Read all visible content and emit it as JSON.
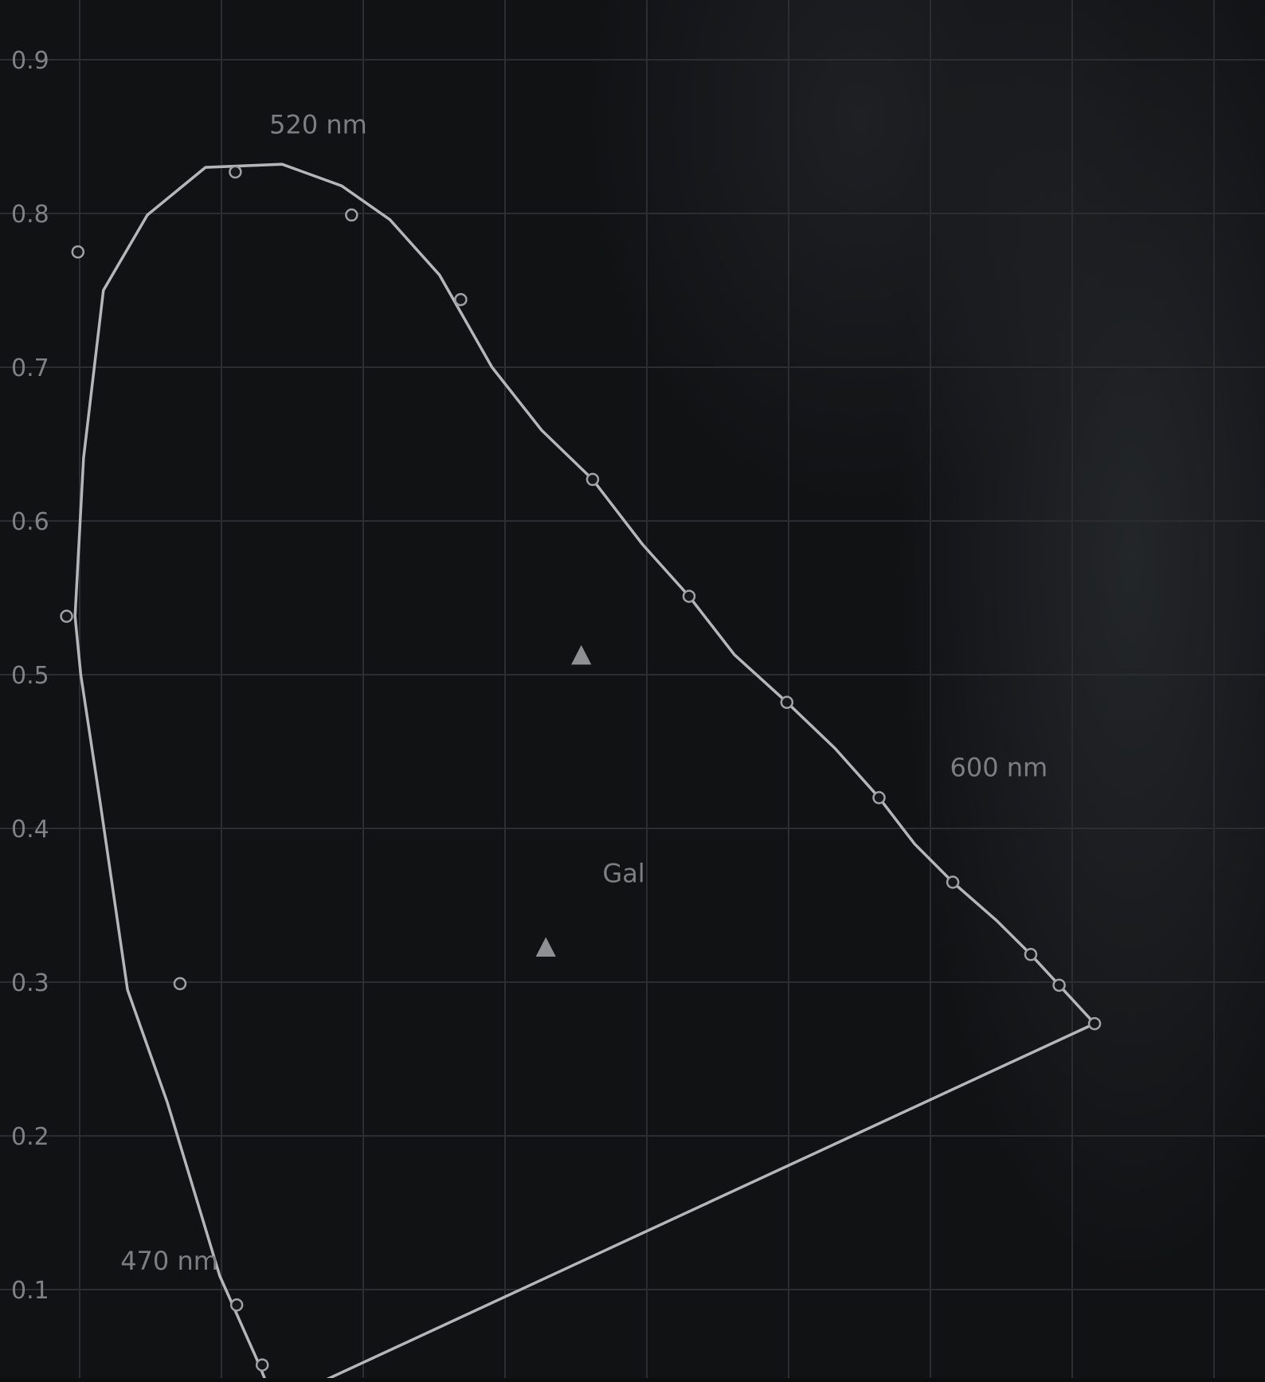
{
  "chart_data": {
    "type": "line",
    "title": "",
    "xlabel": "",
    "ylabel": "",
    "xlim": [
      0.0,
      0.8
    ],
    "ylim": [
      0.0,
      0.9
    ],
    "grid": true,
    "y_ticks": [
      {
        "value": 0.9,
        "label": "0.9"
      },
      {
        "value": 0.8,
        "label": "0.8"
      },
      {
        "value": 0.7,
        "label": "0.7"
      },
      {
        "value": 0.6,
        "label": "0.6"
      },
      {
        "value": 0.5,
        "label": "0.5"
      },
      {
        "value": 0.4,
        "label": "0.4"
      },
      {
        "value": 0.3,
        "label": "0.3"
      },
      {
        "value": 0.2,
        "label": "0.2"
      },
      {
        "value": 0.1,
        "label": "0.1"
      }
    ],
    "x_grid": [
      0.0,
      0.1,
      0.2,
      0.3,
      0.4,
      0.5,
      0.6,
      0.7,
      0.8
    ],
    "series": [
      {
        "x": [
          0.149,
          0.136,
          0.11,
          0.073,
          0.045,
          0.026,
          0.012,
          0.008,
          0.014,
          0.028,
          0.059,
          0.1,
          0.154,
          0.196,
          0.23,
          0.265,
          0.302,
          0.337,
          0.373,
          0.408,
          0.441,
          0.473,
          0.51,
          0.544,
          0.575,
          0.6,
          0.627,
          0.658,
          0.682,
          0.706,
          0.727
        ],
        "y": [
          0.026,
          0.055,
          0.109,
          0.222,
          0.295,
          0.415,
          0.5,
          0.538,
          0.641,
          0.75,
          0.799,
          0.83,
          0.832,
          0.818,
          0.796,
          0.76,
          0.7,
          0.659,
          0.627,
          0.585,
          0.551,
          0.513,
          0.482,
          0.452,
          0.42,
          0.39,
          0.365,
          0.34,
          0.318,
          0.294,
          0.273
        ]
      }
    ],
    "markers": [
      {
        "x": 0.14,
        "y": 0.051
      },
      {
        "x": 0.122,
        "y": 0.09
      },
      {
        "x": 0.082,
        "y": 0.299
      },
      {
        "x": 0.002,
        "y": 0.538
      },
      {
        "x": 0.01,
        "y": 0.775
      },
      {
        "x": 0.121,
        "y": 0.827
      },
      {
        "x": 0.203,
        "y": 0.799
      },
      {
        "x": 0.28,
        "y": 0.744
      },
      {
        "x": 0.373,
        "y": 0.627
      },
      {
        "x": 0.441,
        "y": 0.551
      },
      {
        "x": 0.51,
        "y": 0.482
      },
      {
        "x": 0.575,
        "y": 0.42
      },
      {
        "x": 0.627,
        "y": 0.365
      },
      {
        "x": 0.682,
        "y": 0.318
      },
      {
        "x": 0.702,
        "y": 0.298
      },
      {
        "x": 0.727,
        "y": 0.273
      }
    ],
    "annotations": [
      {
        "text": "520 nm",
        "x": 0.145,
        "y": 0.852
      },
      {
        "text": "600 nm",
        "x": 0.625,
        "y": 0.434
      },
      {
        "text": "470 nm",
        "x": 0.04,
        "y": 0.113
      },
      {
        "text": "Gal",
        "x": 0.38,
        "y": 0.365
      }
    ],
    "points": [
      {
        "shape": "triangle",
        "x": 0.365,
        "y": 0.512
      },
      {
        "shape": "triangle",
        "x": 0.34,
        "y": 0.322
      }
    ],
    "colors": {
      "background": "#111214",
      "grid": "#2b2d30",
      "locus": "#b4b7ba",
      "text": "#7f8285"
    }
  }
}
